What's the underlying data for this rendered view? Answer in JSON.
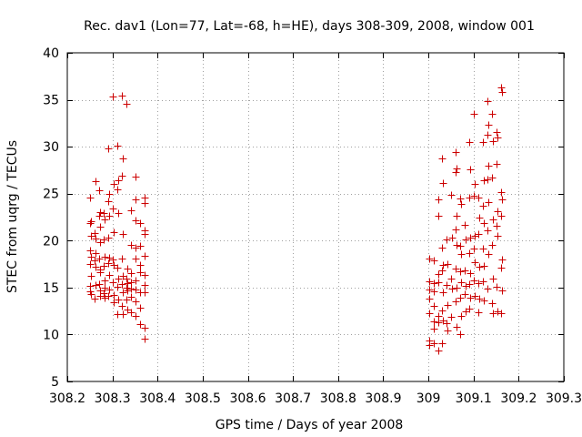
{
  "chart_data": {
    "type": "scatter",
    "title": "Rec. dav1 (Lon=77, Lat=-68, h=HE), days 308-309, 2008, window 001",
    "xlabel": "GPS time / Days of year 2008",
    "ylabel": "STEC from uqrg / TECUs",
    "xlim": [
      308.2,
      309.3
    ],
    "ylim": [
      5,
      40
    ],
    "xticks": [
      308.2,
      308.3,
      308.4,
      308.5,
      308.6,
      308.7,
      308.8,
      308.9,
      309,
      309.1,
      309.2,
      309.3
    ],
    "xtick_labels": [
      "308.2",
      "308.3",
      "308.4",
      "308.5",
      "308.6",
      "308.7",
      "308.8",
      "308.9",
      "309",
      "309.1",
      "309.2",
      "309.3"
    ],
    "yticks": [
      5,
      10,
      15,
      20,
      25,
      30,
      35,
      40
    ],
    "ytick_labels": [
      "5",
      "10",
      "15",
      "20",
      "25",
      "30",
      "35",
      "40"
    ],
    "grid": true,
    "marker_color": "#cc0000",
    "series": [
      {
        "name": "STEC",
        "marker": "+",
        "points": [
          [
            308.251,
            24.6
          ],
          [
            308.252,
            22.1
          ],
          [
            308.25,
            21.9
          ],
          [
            308.252,
            20.5
          ],
          [
            308.251,
            19.0
          ],
          [
            308.253,
            18.3
          ],
          [
            308.251,
            17.5
          ],
          [
            308.252,
            16.2
          ],
          [
            308.25,
            15.2
          ],
          [
            308.251,
            14.6
          ],
          [
            308.253,
            14.3
          ],
          [
            308.262,
            26.3
          ],
          [
            308.261,
            20.8
          ],
          [
            308.262,
            20.2
          ],
          [
            308.263,
            18.7
          ],
          [
            308.261,
            17.9
          ],
          [
            308.262,
            17.2
          ],
          [
            308.263,
            15.3
          ],
          [
            308.261,
            13.8
          ],
          [
            308.271,
            25.4
          ],
          [
            308.272,
            23.0
          ],
          [
            308.271,
            22.6
          ],
          [
            308.272,
            21.5
          ],
          [
            308.273,
            19.8
          ],
          [
            308.271,
            18.1
          ],
          [
            308.272,
            16.9
          ],
          [
            308.273,
            16.6
          ],
          [
            308.271,
            15.4
          ],
          [
            308.272,
            14.7
          ],
          [
            308.273,
            14.1
          ],
          [
            308.281,
            22.9
          ],
          [
            308.282,
            22.3
          ],
          [
            308.281,
            20.1
          ],
          [
            308.282,
            18.3
          ],
          [
            308.281,
            17.3
          ],
          [
            308.282,
            15.8
          ],
          [
            308.283,
            15.0
          ],
          [
            308.281,
            14.4
          ],
          [
            308.282,
            13.9
          ],
          [
            308.291,
            29.8
          ],
          [
            308.292,
            25.0
          ],
          [
            308.291,
            24.2
          ],
          [
            308.292,
            22.6
          ],
          [
            308.291,
            20.3
          ],
          [
            308.292,
            18.2
          ],
          [
            308.291,
            17.6
          ],
          [
            308.292,
            16.3
          ],
          [
            308.293,
            14.8
          ],
          [
            308.291,
            14.1
          ],
          [
            308.301,
            35.3
          ],
          [
            308.302,
            26.0
          ],
          [
            308.301,
            23.4
          ],
          [
            308.302,
            20.9
          ],
          [
            308.301,
            18.0
          ],
          [
            308.302,
            17.4
          ],
          [
            308.301,
            15.6
          ],
          [
            308.302,
            14.2
          ],
          [
            308.303,
            13.4
          ],
          [
            308.311,
            30.1
          ],
          [
            308.312,
            26.4
          ],
          [
            308.311,
            25.5
          ],
          [
            308.312,
            22.9
          ],
          [
            308.311,
            17.1
          ],
          [
            308.312,
            16.0
          ],
          [
            308.311,
            15.1
          ],
          [
            308.312,
            13.7
          ],
          [
            308.311,
            12.2
          ],
          [
            308.321,
            35.4
          ],
          [
            308.322,
            28.8
          ],
          [
            308.321,
            26.9
          ],
          [
            308.322,
            20.7
          ],
          [
            308.321,
            18.1
          ],
          [
            308.322,
            16.2
          ],
          [
            308.321,
            15.4
          ],
          [
            308.322,
            14.5
          ],
          [
            308.321,
            13.0
          ],
          [
            308.322,
            12.2
          ],
          [
            308.331,
            34.6
          ],
          [
            308.332,
            17.0
          ],
          [
            308.331,
            16.0
          ],
          [
            308.332,
            15.5
          ],
          [
            308.331,
            15.0
          ],
          [
            308.332,
            14.7
          ],
          [
            308.331,
            13.7
          ],
          [
            308.332,
            12.7
          ],
          [
            308.341,
            23.2
          ],
          [
            308.342,
            19.5
          ],
          [
            308.341,
            16.5
          ],
          [
            308.342,
            15.6
          ],
          [
            308.341,
            14.9
          ],
          [
            308.342,
            14.0
          ],
          [
            308.341,
            12.4
          ],
          [
            308.351,
            26.8
          ],
          [
            308.352,
            24.4
          ],
          [
            308.351,
            22.2
          ],
          [
            308.352,
            19.3
          ],
          [
            308.351,
            18.1
          ],
          [
            308.352,
            15.8
          ],
          [
            308.351,
            14.8
          ],
          [
            308.352,
            13.5
          ],
          [
            308.351,
            12.0
          ],
          [
            308.361,
            21.9
          ],
          [
            308.362,
            19.4
          ],
          [
            308.361,
            17.4
          ],
          [
            308.362,
            16.6
          ],
          [
            308.361,
            14.5
          ],
          [
            308.362,
            12.9
          ],
          [
            308.361,
            11.1
          ],
          [
            308.371,
            24.6
          ],
          [
            308.372,
            24.0
          ],
          [
            308.371,
            21.1
          ],
          [
            308.372,
            20.7
          ],
          [
            308.371,
            18.4
          ],
          [
            308.372,
            16.3
          ],
          [
            308.371,
            15.3
          ],
          [
            308.372,
            14.5
          ],
          [
            308.371,
            10.7
          ],
          [
            308.372,
            9.6
          ],
          [
            309.001,
            18.1
          ],
          [
            309.002,
            15.7
          ],
          [
            309.001,
            14.8
          ],
          [
            309.002,
            13.8
          ],
          [
            309.001,
            12.3
          ],
          [
            309.002,
            9.4
          ],
          [
            309.001,
            8.9
          ],
          [
            309.011,
            17.9
          ],
          [
            309.012,
            15.5
          ],
          [
            309.011,
            14.6
          ],
          [
            309.012,
            13.0
          ],
          [
            309.011,
            11.4
          ],
          [
            309.012,
            10.6
          ],
          [
            309.011,
            9.1
          ],
          [
            309.021,
            24.4
          ],
          [
            309.022,
            22.6
          ],
          [
            309.021,
            16.4
          ],
          [
            309.022,
            15.6
          ],
          [
            309.021,
            12.0
          ],
          [
            309.022,
            11.3
          ],
          [
            309.021,
            8.3
          ],
          [
            309.031,
            28.8
          ],
          [
            309.032,
            26.1
          ],
          [
            309.031,
            19.3
          ],
          [
            309.032,
            17.4
          ],
          [
            309.031,
            16.8
          ],
          [
            309.032,
            14.5
          ],
          [
            309.031,
            12.6
          ],
          [
            309.032,
            11.5
          ],
          [
            309.031,
            9.1
          ],
          [
            309.041,
            20.1
          ],
          [
            309.042,
            17.5
          ],
          [
            309.041,
            15.3
          ],
          [
            309.042,
            13.1
          ],
          [
            309.041,
            11.2
          ],
          [
            309.042,
            10.4
          ],
          [
            309.051,
            24.9
          ],
          [
            309.052,
            20.3
          ],
          [
            309.051,
            16.0
          ],
          [
            309.052,
            14.9
          ],
          [
            309.051,
            11.9
          ],
          [
            309.061,
            27.3
          ],
          [
            309.062,
            27.7
          ],
          [
            309.061,
            29.4
          ],
          [
            309.062,
            22.6
          ],
          [
            309.061,
            21.2
          ],
          [
            309.062,
            19.5
          ],
          [
            309.061,
            17.0
          ],
          [
            309.062,
            15.0
          ],
          [
            309.061,
            13.5
          ],
          [
            309.062,
            10.8
          ],
          [
            309.071,
            24.5
          ],
          [
            309.072,
            23.9
          ],
          [
            309.071,
            19.4
          ],
          [
            309.072,
            18.6
          ],
          [
            309.071,
            16.7
          ],
          [
            309.072,
            15.6
          ],
          [
            309.071,
            13.9
          ],
          [
            309.072,
            12.0
          ],
          [
            309.071,
            10.0
          ],
          [
            309.081,
            21.7
          ],
          [
            309.082,
            20.1
          ],
          [
            309.081,
            16.8
          ],
          [
            309.082,
            15.2
          ],
          [
            309.081,
            14.3
          ],
          [
            309.082,
            12.5
          ],
          [
            309.091,
            30.5
          ],
          [
            309.092,
            27.6
          ],
          [
            309.091,
            24.6
          ],
          [
            309.092,
            20.3
          ],
          [
            309.091,
            18.7
          ],
          [
            309.092,
            16.5
          ],
          [
            309.091,
            15.4
          ],
          [
            309.092,
            13.9
          ],
          [
            309.091,
            12.8
          ],
          [
            309.101,
            33.5
          ],
          [
            309.102,
            26.0
          ],
          [
            309.101,
            24.8
          ],
          [
            309.102,
            20.5
          ],
          [
            309.101,
            19.2
          ],
          [
            309.102,
            17.7
          ],
          [
            309.101,
            15.8
          ],
          [
            309.102,
            14.1
          ],
          [
            309.111,
            24.6
          ],
          [
            309.112,
            22.5
          ],
          [
            309.111,
            20.7
          ],
          [
            309.112,
            17.2
          ],
          [
            309.111,
            15.5
          ],
          [
            309.112,
            13.8
          ],
          [
            309.111,
            12.4
          ],
          [
            309.121,
            30.5
          ],
          [
            309.122,
            26.4
          ],
          [
            309.121,
            23.7
          ],
          [
            309.122,
            21.9
          ],
          [
            309.121,
            19.2
          ],
          [
            309.122,
            17.3
          ],
          [
            309.121,
            15.7
          ],
          [
            309.122,
            13.6
          ],
          [
            309.131,
            34.9
          ],
          [
            309.132,
            32.3
          ],
          [
            309.131,
            31.3
          ],
          [
            309.132,
            28.0
          ],
          [
            309.131,
            26.5
          ],
          [
            309.132,
            24.1
          ],
          [
            309.131,
            21.1
          ],
          [
            309.132,
            18.6
          ],
          [
            309.131,
            14.9
          ],
          [
            309.141,
            33.5
          ],
          [
            309.142,
            30.6
          ],
          [
            309.141,
            26.7
          ],
          [
            309.142,
            22.3
          ],
          [
            309.141,
            19.5
          ],
          [
            309.142,
            16.0
          ],
          [
            309.141,
            13.3
          ],
          [
            309.142,
            12.3
          ],
          [
            309.151,
            31.6
          ],
          [
            309.152,
            31.0
          ],
          [
            309.151,
            28.2
          ],
          [
            309.152,
            23.1
          ],
          [
            309.151,
            21.6
          ],
          [
            309.152,
            20.5
          ],
          [
            309.151,
            15.1
          ],
          [
            309.152,
            12.5
          ],
          [
            309.161,
            36.3
          ],
          [
            309.162,
            35.8
          ],
          [
            309.161,
            25.2
          ],
          [
            309.162,
            24.4
          ],
          [
            309.161,
            22.6
          ],
          [
            309.162,
            18.0
          ],
          [
            309.161,
            17.1
          ],
          [
            309.162,
            14.7
          ],
          [
            309.161,
            12.3
          ]
        ]
      }
    ]
  }
}
